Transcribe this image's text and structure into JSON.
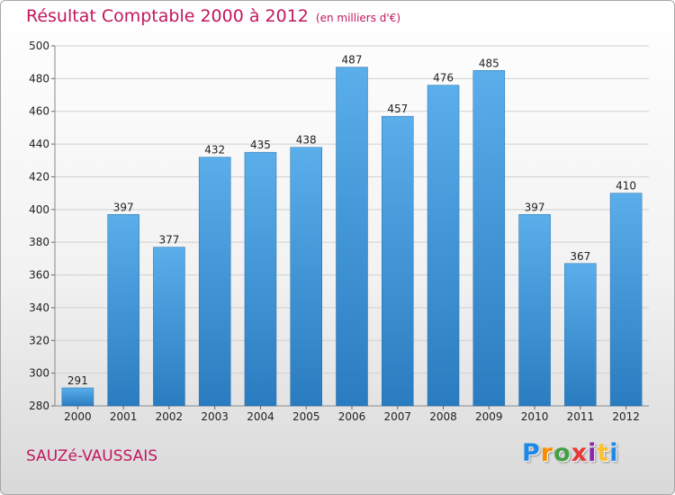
{
  "header": {
    "title": "Résultat Comptable 2000 à 2012",
    "subtitle": "(en milliers d'€)"
  },
  "commune": "SAUZé-VAUSSAIS",
  "logo": {
    "letters": [
      "P",
      "r",
      "o",
      "x",
      "i",
      "t",
      "i"
    ],
    "colors": [
      "#1e88e5",
      "#fb8c00",
      "#43a047",
      "#e53935",
      "#8e24aa",
      "#fbc02d",
      "#1e88e5"
    ]
  },
  "chart_data": {
    "type": "bar",
    "title": "Résultat Comptable 2000 à 2012",
    "subtitle": "(en milliers d'€)",
    "categories": [
      "2000",
      "2001",
      "2002",
      "2003",
      "2004",
      "2005",
      "2006",
      "2007",
      "2008",
      "2009",
      "2010",
      "2011",
      "2012"
    ],
    "values": [
      291,
      397,
      377,
      432,
      435,
      438,
      487,
      457,
      476,
      485,
      397,
      367,
      410
    ],
    "ylim": [
      280,
      500
    ],
    "yticks": [
      280,
      300,
      320,
      340,
      360,
      380,
      400,
      420,
      440,
      460,
      480,
      500
    ],
    "grid": true,
    "bar_color": "#4a9fde"
  }
}
